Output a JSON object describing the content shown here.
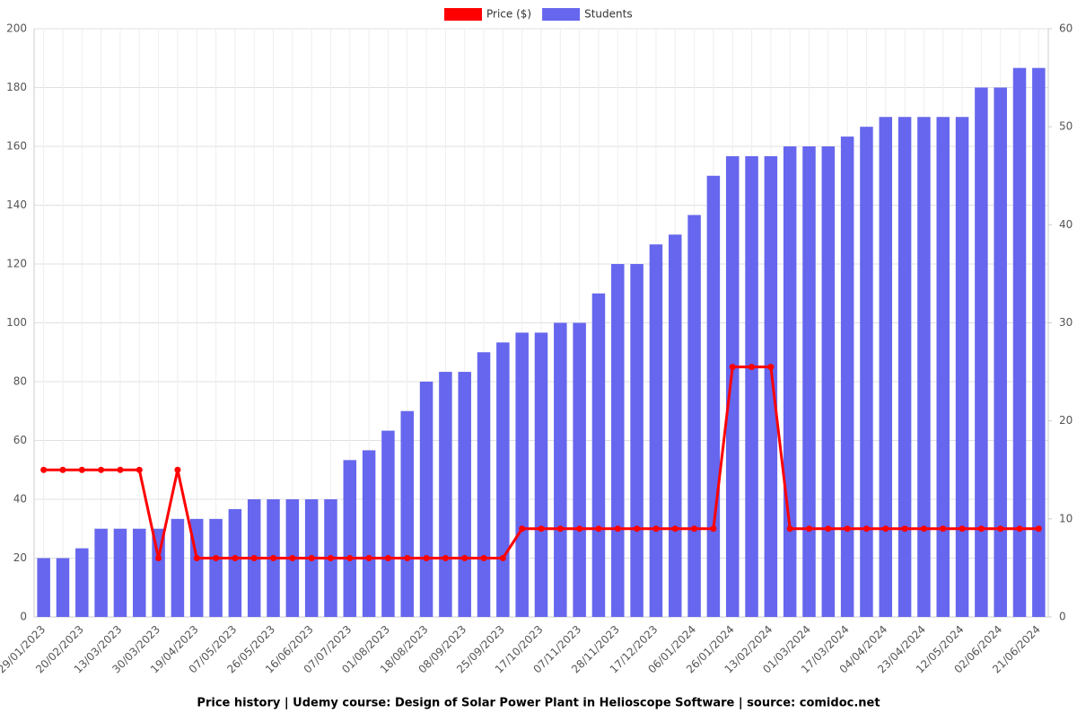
{
  "chart_data": {
    "type": "bar-line",
    "title": "Price history | Udemy course: Design of Solar Power Plant in Helioscope Software | source: comidoc.net",
    "categories": [
      "29/01/2023",
      null,
      "20/02/2023",
      null,
      "13/03/2023",
      null,
      "30/03/2023",
      null,
      "19/04/2023",
      null,
      "07/05/2023",
      null,
      "26/05/2023",
      null,
      "16/06/2023",
      null,
      "07/07/2023",
      null,
      "01/08/2023",
      null,
      "18/08/2023",
      null,
      "08/09/2023",
      null,
      "25/09/2023",
      null,
      "17/10/2023",
      null,
      "07/11/2023",
      null,
      "28/11/2023",
      null,
      "17/12/2023",
      null,
      "06/01/2024",
      null,
      "26/01/2024",
      null,
      "13/02/2024",
      null,
      "01/03/2024",
      null,
      "17/03/2024",
      null,
      "04/04/2024",
      null,
      "23/04/2024",
      null,
      "12/05/2024",
      null,
      "02/06/2024",
      null,
      "21/06/2024"
    ],
    "series": [
      {
        "name": "Price ($)",
        "color": "#ff0000",
        "type": "line",
        "axis": "y",
        "values": [
          50,
          50,
          50,
          50,
          50,
          50,
          20,
          50,
          20,
          20,
          20,
          20,
          20,
          20,
          20,
          20,
          20,
          20,
          20,
          20,
          20,
          20,
          20,
          20,
          20,
          30,
          30,
          30,
          30,
          30,
          30,
          30,
          30,
          30,
          30,
          30,
          85,
          85,
          85,
          30,
          30,
          30,
          30,
          30,
          30,
          30,
          30,
          30,
          30,
          30,
          30,
          30,
          30
        ]
      },
      {
        "name": "Students",
        "color": "#6666ee",
        "type": "bar",
        "axis": "y2",
        "values": [
          6,
          6,
          7,
          9,
          9,
          9,
          9,
          10,
          10,
          10,
          11,
          12,
          12,
          12,
          12,
          12,
          16,
          17,
          19,
          21,
          24,
          25,
          25,
          27,
          28,
          29,
          29,
          30,
          30,
          33,
          36,
          36,
          38,
          39,
          41,
          45,
          47,
          47,
          47,
          48,
          48,
          48,
          49,
          50,
          51,
          51,
          51,
          51,
          51,
          54,
          54,
          56,
          56
        ]
      }
    ],
    "ylim": [
      0,
      200
    ],
    "yticks": [
      0,
      20,
      40,
      60,
      80,
      100,
      120,
      140,
      160,
      180,
      200
    ],
    "y2lim": [
      0,
      60
    ],
    "y2ticks": [
      0,
      10,
      20,
      30,
      40,
      50,
      60
    ],
    "grid": true,
    "legend": "top"
  }
}
